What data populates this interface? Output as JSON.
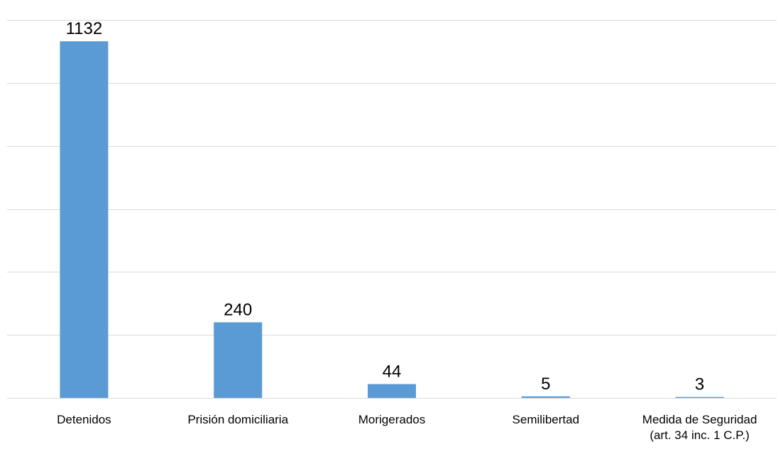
{
  "chart_data": {
    "type": "bar",
    "categories": [
      [
        "Detenidos"
      ],
      [
        "Prisión domiciliaria"
      ],
      [
        "Morigerados"
      ],
      [
        "Semilibertad"
      ],
      [
        "Medida de Seguridad",
        "(art. 34 inc. 1 C.P.)"
      ]
    ],
    "values": [
      1132,
      240,
      44,
      5,
      3
    ],
    "data_labels": [
      "1132",
      "240",
      "44",
      "5",
      "3"
    ],
    "title": "",
    "xlabel": "",
    "ylabel": "",
    "ylim": [
      0,
      1200
    ],
    "grid_step": 200,
    "grid": true,
    "legend": "none",
    "bar_color": "#5b9bd5",
    "grid_color": "#d9d9d9"
  }
}
